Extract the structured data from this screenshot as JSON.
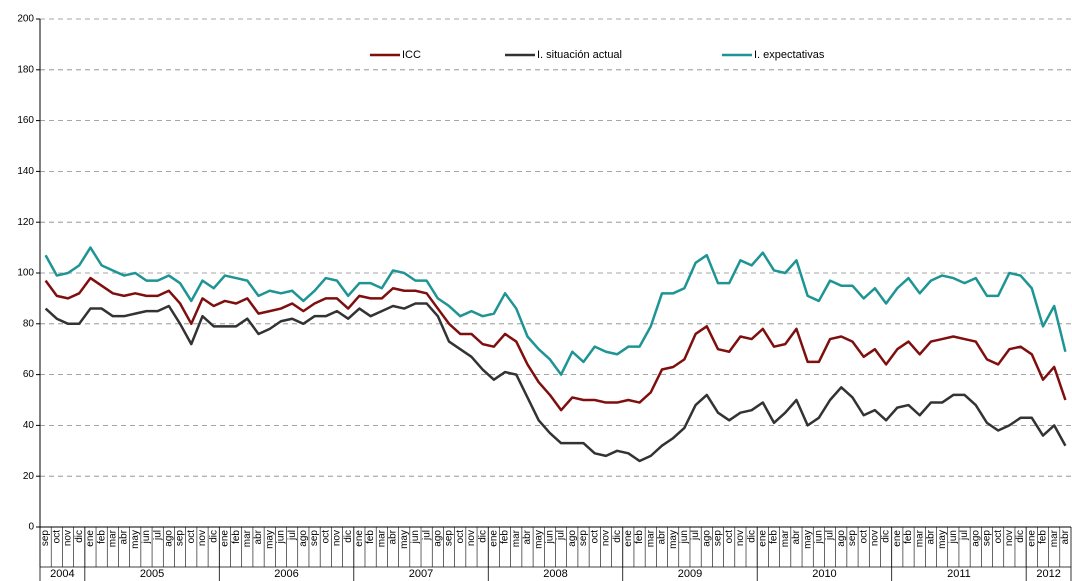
{
  "chart_data": {
    "type": "line",
    "categories": [
      "sep",
      "oct",
      "nov",
      "dic",
      "ene",
      "feb",
      "mar",
      "abr",
      "may",
      "jun",
      "jul",
      "ago",
      "sep",
      "oct",
      "nov",
      "dic",
      "ene",
      "feb",
      "mar",
      "abr",
      "may",
      "jun",
      "jul",
      "ago",
      "sep",
      "oct",
      "nov",
      "dic",
      "ene",
      "feb",
      "mar",
      "abr",
      "may",
      "jun",
      "jul",
      "ago",
      "sep",
      "oct",
      "nov",
      "dic",
      "ene",
      "feb",
      "mar",
      "abr",
      "may",
      "jun",
      "jul",
      "ago",
      "sep",
      "oct",
      "nov",
      "dic",
      "ene",
      "feb",
      "mar",
      "abr",
      "may",
      "jun",
      "jul",
      "ago",
      "sep",
      "oct",
      "nov",
      "dic",
      "ene",
      "feb",
      "mar",
      "abr",
      "may",
      "jun",
      "jul",
      "ago",
      "sep",
      "oct",
      "nov",
      "dic",
      "ene",
      "feb",
      "mar",
      "abr",
      "may",
      "jun",
      "jul",
      "ago",
      "sep",
      "oct",
      "nov",
      "dic",
      "ene",
      "feb",
      "mar",
      "abr"
    ],
    "category_groups": [
      "2004",
      "2005",
      "2006",
      "2007",
      "2008",
      "2009",
      "2010",
      "2011",
      "2012"
    ],
    "series": [
      {
        "name": "ICC",
        "color": "#7f0f0f",
        "values": [
          97,
          91,
          90,
          92,
          98,
          95,
          92,
          91,
          92,
          91,
          91,
          93,
          88,
          80,
          90,
          87,
          89,
          88,
          90,
          84,
          85,
          86,
          88,
          85,
          88,
          90,
          90,
          86,
          91,
          90,
          90,
          94,
          93,
          93,
          92,
          86,
          80,
          76,
          76,
          72,
          71,
          76,
          73,
          64,
          57,
          52,
          46,
          51,
          50,
          50,
          49,
          49,
          50,
          49,
          53,
          62,
          63,
          66,
          76,
          79,
          70,
          69,
          75,
          74,
          78,
          71,
          72,
          78,
          65,
          65,
          74,
          75,
          73,
          67,
          70,
          64,
          70,
          73,
          68,
          73,
          74,
          75,
          74,
          73,
          66,
          64,
          70,
          71,
          68,
          58,
          63,
          50
        ]
      },
      {
        "name": "I. situación actual",
        "color": "#333333",
        "values": [
          86,
          82,
          80,
          80,
          86,
          86,
          83,
          83,
          84,
          85,
          85,
          87,
          80,
          72,
          83,
          79,
          79,
          79,
          82,
          76,
          78,
          81,
          82,
          80,
          83,
          83,
          85,
          82,
          86,
          83,
          85,
          87,
          86,
          88,
          88,
          83,
          73,
          70,
          67,
          62,
          58,
          61,
          60,
          51,
          42,
          37,
          33,
          33,
          33,
          29,
          28,
          30,
          29,
          26,
          28,
          32,
          35,
          39,
          48,
          52,
          45,
          42,
          45,
          46,
          49,
          41,
          45,
          50,
          40,
          43,
          50,
          55,
          51,
          44,
          46,
          42,
          47,
          48,
          44,
          49,
          49,
          52,
          52,
          48,
          41,
          38,
          40,
          43,
          43,
          36,
          40,
          32
        ]
      },
      {
        "name": "I. expectativas",
        "color": "#1f9494",
        "values": [
          107,
          99,
          100,
          103,
          110,
          103,
          101,
          99,
          100,
          97,
          97,
          99,
          96,
          89,
          97,
          94,
          99,
          98,
          97,
          91,
          93,
          92,
          93,
          89,
          93,
          98,
          97,
          91,
          96,
          96,
          94,
          101,
          100,
          97,
          97,
          90,
          87,
          83,
          85,
          83,
          84,
          92,
          86,
          75,
          70,
          66,
          60,
          69,
          65,
          71,
          69,
          68,
          71,
          71,
          79,
          92,
          92,
          94,
          104,
          107,
          96,
          96,
          105,
          103,
          108,
          101,
          100,
          105,
          91,
          89,
          97,
          95,
          95,
          90,
          94,
          88,
          94,
          98,
          92,
          97,
          99,
          98,
          96,
          98,
          91,
          91,
          100,
          99,
          94,
          79,
          87,
          69
        ]
      }
    ],
    "ylim": [
      0,
      200
    ],
    "yticks": [
      0,
      20,
      40,
      60,
      80,
      100,
      120,
      140,
      160,
      180,
      200
    ],
    "grid": true
  }
}
